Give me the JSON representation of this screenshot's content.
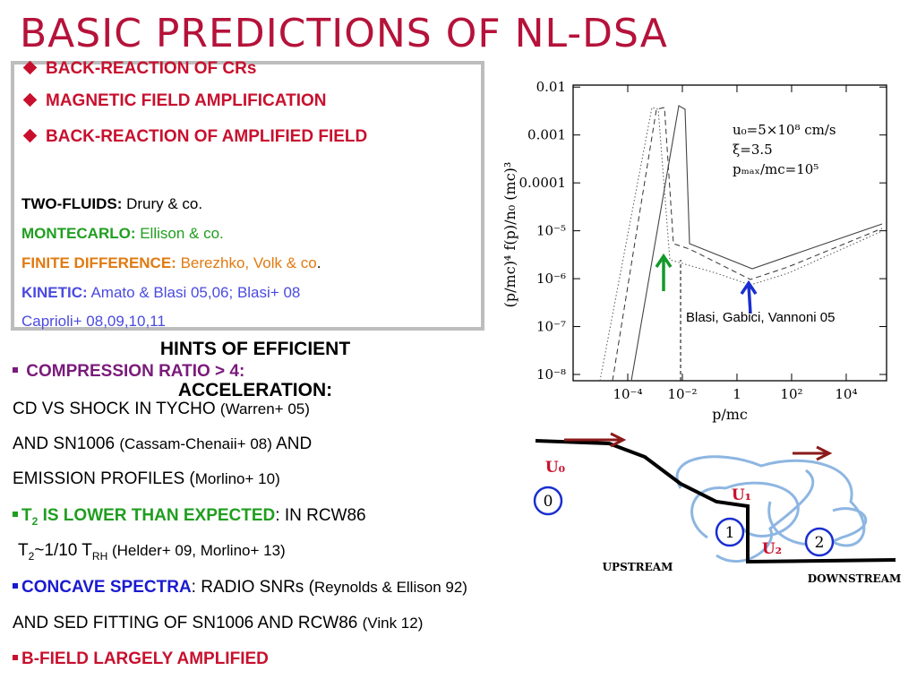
{
  "title": "BASIC PREDICTIONS OF NL-DSA",
  "effects": [
    "BACK-REACTION OF CRs",
    "MAGNETIC FIELD AMPLIFICATION",
    "BACK-REACTION OF AMPLIFIED FIELD"
  ],
  "methods": [
    {
      "label": "TWO-FLUIDS:",
      "text": "Drury & co."
    },
    {
      "label": "MONTECARLO:",
      "text": "Ellison & co."
    },
    {
      "label": "FINITE DIFFERENCE:",
      "text": "Berezhko, Volk & co",
      "end": "."
    },
    {
      "label": "KINETIC:",
      "text": "Amato & Blasi 05,06; Blasi+ 08"
    },
    {
      "text": "Caprioli+ 08,09,10,11"
    }
  ],
  "hints": {
    "heading": "HINTS OF EFFICIENT ACCELERATION:",
    "lines": [
      [
        "COMPRESSION RATIO > 4:"
      ],
      [
        "CD VS SHOCK IN TYCHO ",
        "(Warren+ 05)"
      ],
      [
        "AND SN1006 ",
        "(Cassam-Chenaii+ 08)",
        " AND"
      ],
      [
        "EMISSION PROFILES (",
        "Morlino+ 10)"
      ],
      [
        "T",
        "2",
        " IS LOWER THAN EXPECTED",
        ": IN RCW86"
      ],
      [
        "T",
        "2",
        "~1/10 T",
        "RH",
        " (Helder+ 09, Morlino+ 13)"
      ],
      [
        "CONCAVE SPECTRA",
        ": RADIO SNRs (",
        "Reynolds & Ellison 92)"
      ],
      [
        "AND SED FITTING OF SN1006 AND RCW86 ",
        "(Vink 12)"
      ],
      [
        "B-FIELD LARGELY AMPLIFIED"
      ]
    ]
  },
  "plot": {
    "scale": "log",
    "xlim": [
      1e-06,
      300000
    ],
    "ylim": [
      7.4e-09,
      0.011
    ],
    "xticks": [
      {
        "value": 0.0001,
        "label": "10⁻⁴"
      },
      {
        "value": 0.01,
        "label": "10⁻²"
      },
      1,
      {
        "value": 100,
        "label": "10²"
      },
      {
        "value": 10000,
        "label": "10⁴"
      }
    ],
    "yticks": [
      0.01,
      0.001,
      0.0001,
      {
        "value": 1e-05,
        "label": "10⁻⁵"
      },
      {
        "value": 1e-06,
        "label": "10⁻⁶"
      },
      {
        "value": 1e-07,
        "label": "10⁻⁷"
      },
      {
        "value": 1e-08,
        "label": "10⁻⁸"
      }
    ],
    "xlabel": "p/mc",
    "ylabel": "(p/mc)⁴ f(p)/n₀ (mc)³",
    "params": [
      "u₀=5×10⁸ cm/s",
      "ξ=3.5",
      "pₘₐₓ/mc=10⁵"
    ],
    "credit": "Blasi, Gabici, Vannoni 05"
  },
  "diagram": {
    "u0": "U₀",
    "u1": "U₁",
    "u2": "U₂",
    "zones": [
      "0",
      "1",
      "2"
    ],
    "upstream": "UPSTREAM",
    "downstream": "DOWNSTREAM"
  }
}
